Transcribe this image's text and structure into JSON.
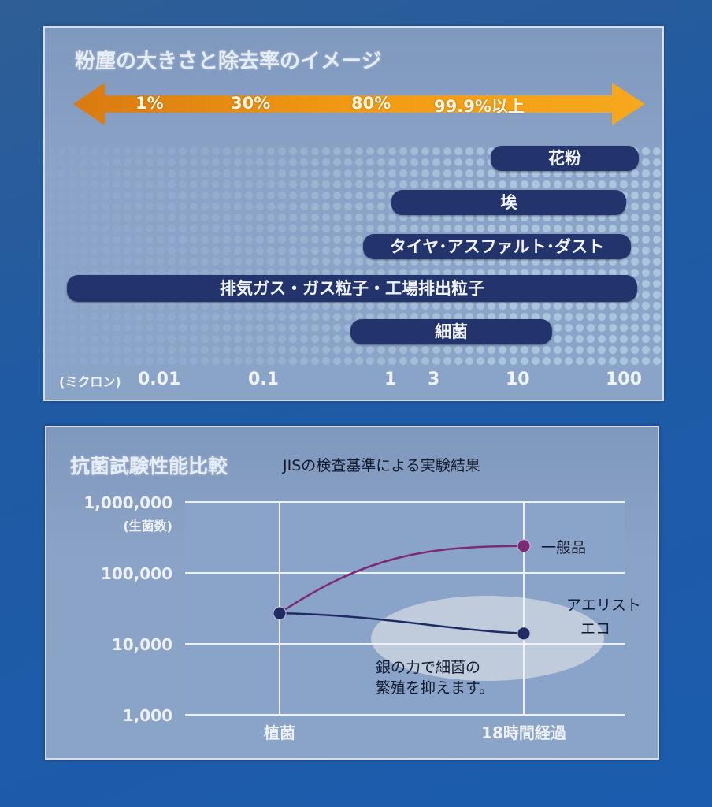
{
  "panel1": {
    "title": "粉塵の大きさと除去率のイメージ",
    "arrow_percents": [
      "1%",
      "30%",
      "80%",
      "99.9%以上"
    ],
    "bars": [
      {
        "label": "花粉"
      },
      {
        "label": "埃"
      },
      {
        "label": "タイヤ･アスファルト･ダスト"
      },
      {
        "label": "排気ガス・ガス粒子・工場排出粒子"
      },
      {
        "label": "細菌"
      }
    ],
    "unit_label": "(ミクロン)",
    "ticks": [
      "0.01",
      "0.1",
      "1",
      "3",
      "10",
      "100"
    ],
    "colors": {
      "arrow": "#f39a13",
      "bar": "#23336c"
    }
  },
  "panel2": {
    "title": "抗菌試験性能比較",
    "subtitle": "JISの検査基準による実験結果",
    "note_line1": "銀の力で細菌の",
    "note_line2": "繁殖を抑えます。",
    "colors": {
      "general": "#7c2a74",
      "aerist": "#1f2c63"
    }
  },
  "chart_data": {
    "type": "line",
    "title": "抗菌試験性能比較",
    "subtitle": "JISの検査基準による実験結果",
    "ylabel": "(生菌数)",
    "xlabel": "",
    "x": [
      "植菌",
      "18時間経過"
    ],
    "yscale": "log",
    "ylim": [
      1000,
      1000000
    ],
    "yticks": [
      "1,000,000",
      "100,000",
      "10,000",
      "1,000"
    ],
    "grid": true,
    "series": [
      {
        "name": "一般品",
        "values": [
          27000,
          240000
        ]
      },
      {
        "name": "アエリスト エコ",
        "values": [
          27000,
          14000
        ]
      }
    ],
    "series_label_lines": {
      "一般品": [
        "一般品"
      ],
      "アエリスト エコ": [
        "アエリスト",
        "エコ"
      ]
    }
  }
}
